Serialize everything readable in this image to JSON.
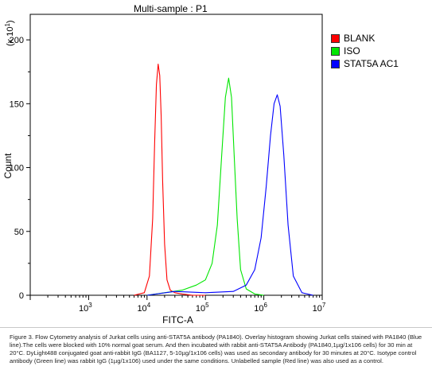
{
  "chart_data": {
    "type": "line",
    "title": "Multi-sample : P1",
    "xlabel": "FITC-A",
    "ylabel": "Count",
    "y_multiplier_label": "(x 10",
    "y_multiplier_exp": "1",
    "x_scale": "log",
    "xlim": [
      100,
      10000000
    ],
    "ylim": [
      0,
      220
    ],
    "x_ticks": [
      {
        "value": 1000,
        "base": "10",
        "exp": "3"
      },
      {
        "value": 10000,
        "base": "10",
        "exp": "4"
      },
      {
        "value": 100000,
        "base": "10",
        "exp": "5"
      },
      {
        "value": 1000000,
        "base": "10",
        "exp": "6"
      },
      {
        "value": 10000000,
        "base": "10",
        "exp": "7"
      }
    ],
    "y_ticks": [
      "0",
      "50",
      "100",
      "150",
      "200"
    ],
    "legend_position": "top-right",
    "series": [
      {
        "name": "BLANK",
        "color": "#ff0000",
        "x": [
          6000,
          9000,
          11000,
          12500,
          13500,
          14500,
          15500,
          16500,
          17500,
          18500,
          20000,
          22000,
          25000,
          30000,
          40000,
          60000,
          100000
        ],
        "y": [
          0,
          2,
          15,
          60,
          120,
          165,
          181,
          172,
          140,
          90,
          40,
          12,
          4,
          2,
          1,
          0,
          0
        ]
      },
      {
        "name": "ISO",
        "color": "#00e600",
        "x": [
          10000,
          20000,
          40000,
          70000,
          100000,
          130000,
          160000,
          190000,
          220000,
          250000,
          280000,
          310000,
          350000,
          400000,
          500000,
          700000,
          1000000
        ],
        "y": [
          0,
          2,
          4,
          8,
          12,
          25,
          55,
          110,
          155,
          170,
          155,
          110,
          60,
          20,
          5,
          1,
          0
        ]
      },
      {
        "name": "STAT5A AC1",
        "color": "#0000ff",
        "x": [
          10000,
          30000,
          100000,
          300000,
          500000,
          700000,
          900000,
          1100000,
          1300000,
          1500000,
          1700000,
          1900000,
          2200000,
          2600000,
          3200000,
          4500000,
          7000000
        ],
        "y": [
          0,
          3,
          2,
          3,
          8,
          20,
          45,
          85,
          125,
          150,
          157,
          148,
          110,
          55,
          15,
          2,
          0
        ]
      }
    ]
  },
  "caption": "Figure 3. Flow Cytometry analysis of Jurkat cells using anti-STAT5A antibody (PA1840). Overlay histogram showing Jurkat cells stained with PA1840 (Blue line).The cells were blocked with 10% normal goat serum. And then incubated with rabbit anti-STAT5A Antibody (PA1840,1µg/1x106 cells) for 30 min at 20°C. DyLight488 conjugated goat anti-rabbit IgG (BA1127, 5-10µg/1x106 cells) was used as secondary antibody for 30 minutes at 20°C. Isotype control antibody (Green line) was rabbit IgG (1µg/1x106) used under the same conditions. Unlabelled sample (Red line) was also used as a control."
}
